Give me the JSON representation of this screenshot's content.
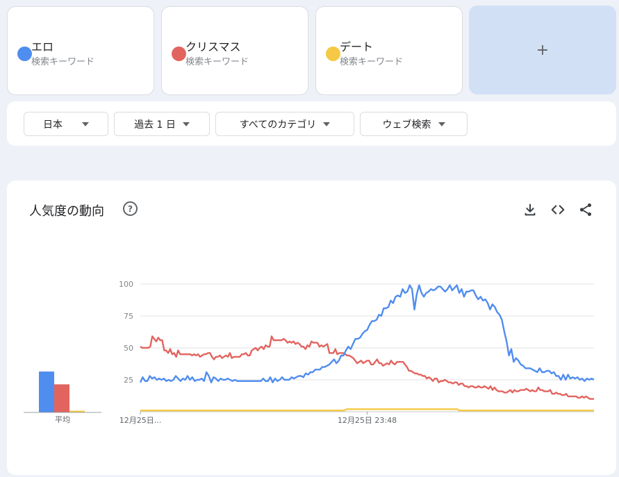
{
  "terms": [
    {
      "name": "エロ",
      "sub": "検索キーワード",
      "color": "#4f8def"
    },
    {
      "name": "クリスマス",
      "sub": "検索キーワード",
      "color": "#e2645f"
    },
    {
      "name": "デート",
      "sub": "検索キーワード",
      "color": "#f5c945"
    }
  ],
  "add_label": "+",
  "filters": {
    "region": "日本",
    "period": "過去 1 日",
    "category": "すべてのカテゴリ",
    "property": "ウェブ検索"
  },
  "panel": {
    "title": "人気度の動向",
    "help": "?",
    "icons": [
      "download-icon",
      "embed-code-icon",
      "share-icon"
    ]
  },
  "averages": {
    "label": "平均",
    "values": [
      48,
      33,
      2
    ]
  },
  "chart_data": {
    "type": "line",
    "ylim": [
      0,
      100
    ],
    "yticks": [
      25,
      50,
      75,
      100
    ],
    "x_labels": [
      "12月25日...",
      "12月25日 23:48"
    ],
    "grid": true,
    "series": [
      {
        "color": "#4f8def",
        "values": [
          23,
          27,
          24,
          24,
          28,
          26,
          27,
          25,
          26,
          25,
          26,
          24,
          25,
          24,
          25,
          28,
          26,
          24,
          26,
          25,
          28,
          25,
          27,
          24,
          25,
          25,
          26,
          24,
          31,
          28,
          23,
          27,
          26,
          24,
          26,
          25,
          25,
          26,
          25,
          24,
          25,
          24,
          24,
          24,
          24,
          24,
          24,
          24,
          24,
          24,
          24,
          24,
          26,
          24,
          24,
          27,
          23,
          26,
          24,
          25,
          27,
          25,
          25,
          25,
          27,
          26,
          27,
          28,
          28,
          27,
          30,
          29,
          31,
          31,
          33,
          33,
          33,
          35,
          35,
          36,
          37,
          39,
          41,
          38,
          40,
          44,
          44,
          48,
          51,
          49,
          53,
          57,
          57,
          58,
          61,
          63,
          64,
          68,
          71,
          71,
          72,
          76,
          75,
          81,
          81,
          82,
          87,
          85,
          90,
          91,
          90,
          96,
          93,
          94,
          99,
          96,
          80,
          92,
          99,
          93,
          90,
          93,
          94,
          96,
          95,
          96,
          98,
          98,
          96,
          94,
          96,
          99,
          95,
          97,
          99,
          93,
          96,
          90,
          94,
          94,
          95,
          95,
          91,
          88,
          90,
          87,
          88,
          85,
          80,
          84,
          82,
          78,
          76,
          72,
          63,
          55,
          44,
          49,
          39,
          42,
          40,
          37,
          36,
          34,
          34,
          34,
          33,
          32,
          31,
          34,
          31,
          31,
          32,
          32,
          30,
          31,
          28,
          28,
          25,
          29,
          25,
          29,
          26,
          27,
          26,
          27,
          25,
          26,
          24,
          26,
          25,
          26,
          25
        ]
      },
      {
        "color": "#e2645f",
        "values": [
          51,
          50,
          50,
          50,
          50,
          51,
          59,
          57,
          55,
          58,
          56,
          56,
          48,
          48,
          46,
          49,
          45,
          46,
          43,
          48,
          45,
          45,
          45,
          45,
          45,
          45,
          44,
          45,
          44,
          45,
          43,
          44,
          45,
          45,
          46,
          46,
          43,
          41,
          43,
          43,
          44,
          42,
          43,
          44,
          43,
          46,
          42,
          43,
          43,
          43,
          43,
          45,
          45,
          46,
          44,
          44,
          48,
          49,
          50,
          48,
          50,
          51,
          49,
          52,
          51,
          51,
          59,
          56,
          56,
          56,
          56,
          56,
          57,
          56,
          54,
          55,
          54,
          55,
          53,
          54,
          53,
          51,
          51,
          49,
          52,
          51,
          55,
          54,
          54,
          54,
          51,
          52,
          51,
          52,
          53,
          46,
          46,
          46,
          49,
          45,
          46,
          46,
          46,
          45,
          44,
          44,
          43,
          42,
          40,
          38,
          39,
          40,
          38,
          39,
          40,
          40,
          37,
          37,
          39,
          41,
          38,
          38,
          36,
          37,
          38,
          37,
          40,
          38,
          37,
          39,
          39,
          39,
          39,
          37,
          35,
          32,
          32,
          31,
          30,
          30,
          29,
          29,
          28,
          28,
          26,
          27,
          26,
          24,
          26,
          26,
          23,
          24,
          24,
          25,
          24,
          23,
          23,
          22,
          23,
          23,
          21,
          22,
          22,
          20,
          20,
          19,
          20,
          20,
          19,
          19,
          20,
          19,
          19,
          20,
          19,
          18,
          20,
          17,
          19,
          17,
          16,
          16,
          16,
          15,
          15,
          16,
          17,
          15,
          17,
          16,
          16,
          17,
          17,
          17,
          18,
          17,
          16,
          17,
          16,
          16,
          19,
          17,
          17,
          16,
          16,
          16,
          17,
          14,
          14,
          15,
          14,
          14,
          13,
          13,
          14,
          12,
          12,
          12,
          12,
          12,
          11,
          11,
          12,
          11,
          12,
          11,
          10,
          10,
          10
        ]
      },
      {
        "color": "#f5c945",
        "values": [
          1,
          1,
          1,
          1,
          1,
          1,
          1,
          1,
          1,
          1,
          1,
          1,
          1,
          1,
          1,
          1,
          1,
          1,
          1,
          1,
          1,
          1,
          1,
          1,
          1,
          1,
          1,
          1,
          1,
          1,
          1,
          1,
          1,
          1,
          1,
          1,
          1,
          1,
          1,
          1,
          1,
          1,
          1,
          1,
          1,
          1,
          1,
          1,
          1,
          1,
          1,
          1,
          1,
          1,
          1,
          1,
          1,
          1,
          1,
          1,
          1,
          1,
          1,
          1,
          1,
          1,
          1,
          1,
          1,
          1,
          1,
          1,
          1,
          1,
          1,
          1,
          1,
          1,
          1,
          1,
          1,
          1,
          1,
          1,
          1,
          1,
          1,
          1,
          1,
          1,
          1,
          1,
          1,
          1,
          1,
          1,
          1,
          1,
          1,
          1,
          1,
          1,
          1,
          1,
          2,
          2,
          2,
          2,
          2,
          2,
          2,
          2,
          2,
          2,
          2,
          2,
          2,
          2,
          2,
          2,
          2,
          2,
          2,
          2,
          2,
          2,
          2,
          2,
          2,
          2,
          2,
          2,
          2,
          2,
          2,
          2,
          2,
          2,
          2,
          2,
          2,
          2,
          2,
          2,
          2,
          2,
          2,
          2,
          2,
          2,
          2,
          2,
          2,
          2,
          2,
          2,
          2,
          2,
          2,
          2,
          2,
          1,
          1,
          1,
          1,
          1,
          1,
          1,
          1,
          1,
          1,
          1,
          1,
          1,
          1,
          1,
          1,
          1,
          1,
          1,
          1,
          1,
          1,
          1,
          1,
          1,
          1,
          1,
          1,
          1,
          1,
          1,
          1,
          1,
          1,
          1,
          1,
          1,
          1,
          1,
          1,
          1,
          1,
          1,
          1,
          1,
          1,
          1,
          1,
          1,
          1,
          1,
          1,
          1,
          1,
          1,
          1,
          1,
          1,
          1,
          1,
          1,
          1,
          1,
          1,
          1,
          1,
          1,
          1,
          1
        ]
      }
    ]
  }
}
